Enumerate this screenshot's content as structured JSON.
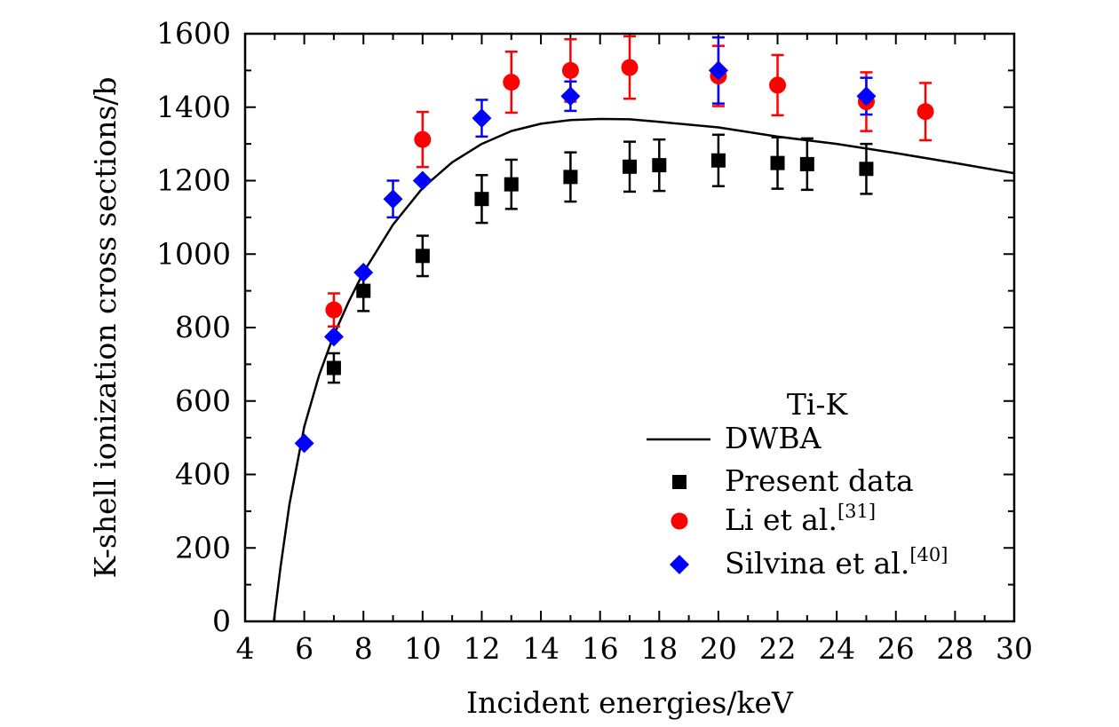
{
  "chart_data": {
    "type": "scatter",
    "xlabel": "Incident energies/keV",
    "ylabel": "K-shell ionization cross sections/b",
    "xlim": [
      4,
      30
    ],
    "ylim": [
      0,
      1600
    ],
    "x_ticks": [
      4,
      6,
      8,
      10,
      12,
      14,
      16,
      18,
      20,
      22,
      24,
      26,
      28,
      30
    ],
    "y_ticks": [
      0,
      200,
      400,
      600,
      800,
      1000,
      1200,
      1400,
      1600
    ],
    "legend_title": "Ti-K",
    "legend_position": "bottom-right",
    "series": [
      {
        "name": "DWBA",
        "kind": "line",
        "color": "#000000",
        "points": [
          [
            4.97,
            0
          ],
          [
            5.2,
            150
          ],
          [
            5.5,
            320
          ],
          [
            6.0,
            530
          ],
          [
            6.5,
            670
          ],
          [
            7.0,
            780
          ],
          [
            7.5,
            870
          ],
          [
            8.0,
            950
          ],
          [
            9.0,
            1080
          ],
          [
            10.0,
            1180
          ],
          [
            11.0,
            1250
          ],
          [
            12.0,
            1300
          ],
          [
            13.0,
            1335
          ],
          [
            14.0,
            1355
          ],
          [
            15.0,
            1365
          ],
          [
            16.0,
            1368
          ],
          [
            17.0,
            1367
          ],
          [
            18.0,
            1360
          ],
          [
            20.0,
            1345
          ],
          [
            22.0,
            1320
          ],
          [
            24.0,
            1300
          ],
          [
            26.0,
            1275
          ],
          [
            28.0,
            1248
          ],
          [
            30.0,
            1220
          ]
        ]
      },
      {
        "name": "Present data",
        "name_sup": "",
        "kind": "square",
        "color": "#000000",
        "points": [
          {
            "x": 7,
            "y": 690,
            "err": 40
          },
          {
            "x": 8,
            "y": 900,
            "err": 55
          },
          {
            "x": 10,
            "y": 995,
            "err": 55
          },
          {
            "x": 12,
            "y": 1150,
            "err": 65
          },
          {
            "x": 13,
            "y": 1190,
            "err": 67
          },
          {
            "x": 15,
            "y": 1210,
            "err": 67
          },
          {
            "x": 17,
            "y": 1238,
            "err": 68
          },
          {
            "x": 18,
            "y": 1242,
            "err": 70
          },
          {
            "x": 20,
            "y": 1255,
            "err": 70
          },
          {
            "x": 22,
            "y": 1248,
            "err": 70
          },
          {
            "x": 23,
            "y": 1245,
            "err": 70
          },
          {
            "x": 25,
            "y": 1232,
            "err": 68
          }
        ]
      },
      {
        "name": "Li et al.",
        "name_sup": "[31]",
        "kind": "circle",
        "color": "#ff0000",
        "points": [
          {
            "x": 7,
            "y": 848,
            "err": 45
          },
          {
            "x": 10,
            "y": 1312,
            "err": 75
          },
          {
            "x": 13,
            "y": 1468,
            "err": 83
          },
          {
            "x": 15,
            "y": 1500,
            "err": 85
          },
          {
            "x": 17,
            "y": 1508,
            "err": 85
          },
          {
            "x": 20,
            "y": 1485,
            "err": 82
          },
          {
            "x": 22,
            "y": 1460,
            "err": 82
          },
          {
            "x": 25,
            "y": 1415,
            "err": 80
          },
          {
            "x": 27,
            "y": 1388,
            "err": 78
          }
        ]
      },
      {
        "name": "Silvina et al.",
        "name_sup": "[40]",
        "kind": "diamond",
        "color": "#0000ff",
        "points": [
          {
            "x": 6,
            "y": 485,
            "err": 0
          },
          {
            "x": 7,
            "y": 775,
            "err": 0
          },
          {
            "x": 8,
            "y": 950,
            "err": 0
          },
          {
            "x": 9,
            "y": 1150,
            "err": 50
          },
          {
            "x": 10,
            "y": 1200,
            "err": 0
          },
          {
            "x": 12,
            "y": 1370,
            "err": 50
          },
          {
            "x": 15,
            "y": 1430,
            "err": 40
          },
          {
            "x": 20,
            "y": 1500,
            "err": 90
          },
          {
            "x": 25,
            "y": 1430,
            "err": 50
          }
        ]
      }
    ]
  }
}
